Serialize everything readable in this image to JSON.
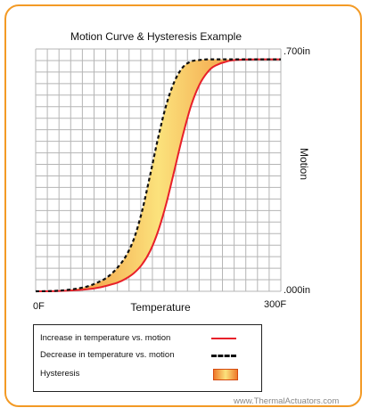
{
  "chart_data": {
    "type": "line",
    "title": "Motion Curve & Hysteresis Example",
    "xlabel": "Temperature",
    "ylabel": "Motion",
    "x_tick_labels": [
      "0F",
      "300F"
    ],
    "y_tick_labels": [
      ".000in",
      ".700in"
    ],
    "xlim": [
      0,
      300
    ],
    "ylim": [
      0,
      0.7
    ],
    "grid": true,
    "legend_position": "bottom",
    "series": [
      {
        "name": "Increase in temperature vs. motion",
        "color": "#e8202a",
        "style": "solid",
        "x": [
          0,
          30,
          60,
          80,
          100,
          110,
          120,
          130,
          140,
          150,
          160,
          170,
          180,
          190,
          200,
          210,
          220,
          240,
          270,
          300
        ],
        "y": [
          0.0,
          0.001,
          0.005,
          0.012,
          0.025,
          0.036,
          0.052,
          0.077,
          0.116,
          0.175,
          0.255,
          0.352,
          0.45,
          0.535,
          0.595,
          0.632,
          0.652,
          0.667,
          0.67,
          0.7
        ]
      },
      {
        "name": "Decrease in temperature vs. motion",
        "color": "#111111",
        "style": "dashed",
        "x": [
          0,
          30,
          60,
          80,
          90,
          100,
          110,
          120,
          130,
          140,
          150,
          160,
          170,
          180,
          190,
          200,
          210,
          230,
          270,
          300
        ],
        "y": [
          0.0,
          0.002,
          0.012,
          0.03,
          0.045,
          0.068,
          0.1,
          0.15,
          0.23,
          0.335,
          0.445,
          0.54,
          0.607,
          0.647,
          0.664,
          0.668,
          0.67,
          0.67,
          0.67,
          0.7
        ]
      }
    ],
    "hysteresis": {
      "name": "Hysteresis",
      "gradient_colors": [
        "#ef7a2a",
        "#fbe27c"
      ]
    }
  },
  "legend": [
    {
      "label": "Increase in temperature vs. motion"
    },
    {
      "label": "Decrease in temperature vs. motion"
    },
    {
      "label": "Hysteresis"
    }
  ],
  "watermark": "www.ThermalActuators.com"
}
